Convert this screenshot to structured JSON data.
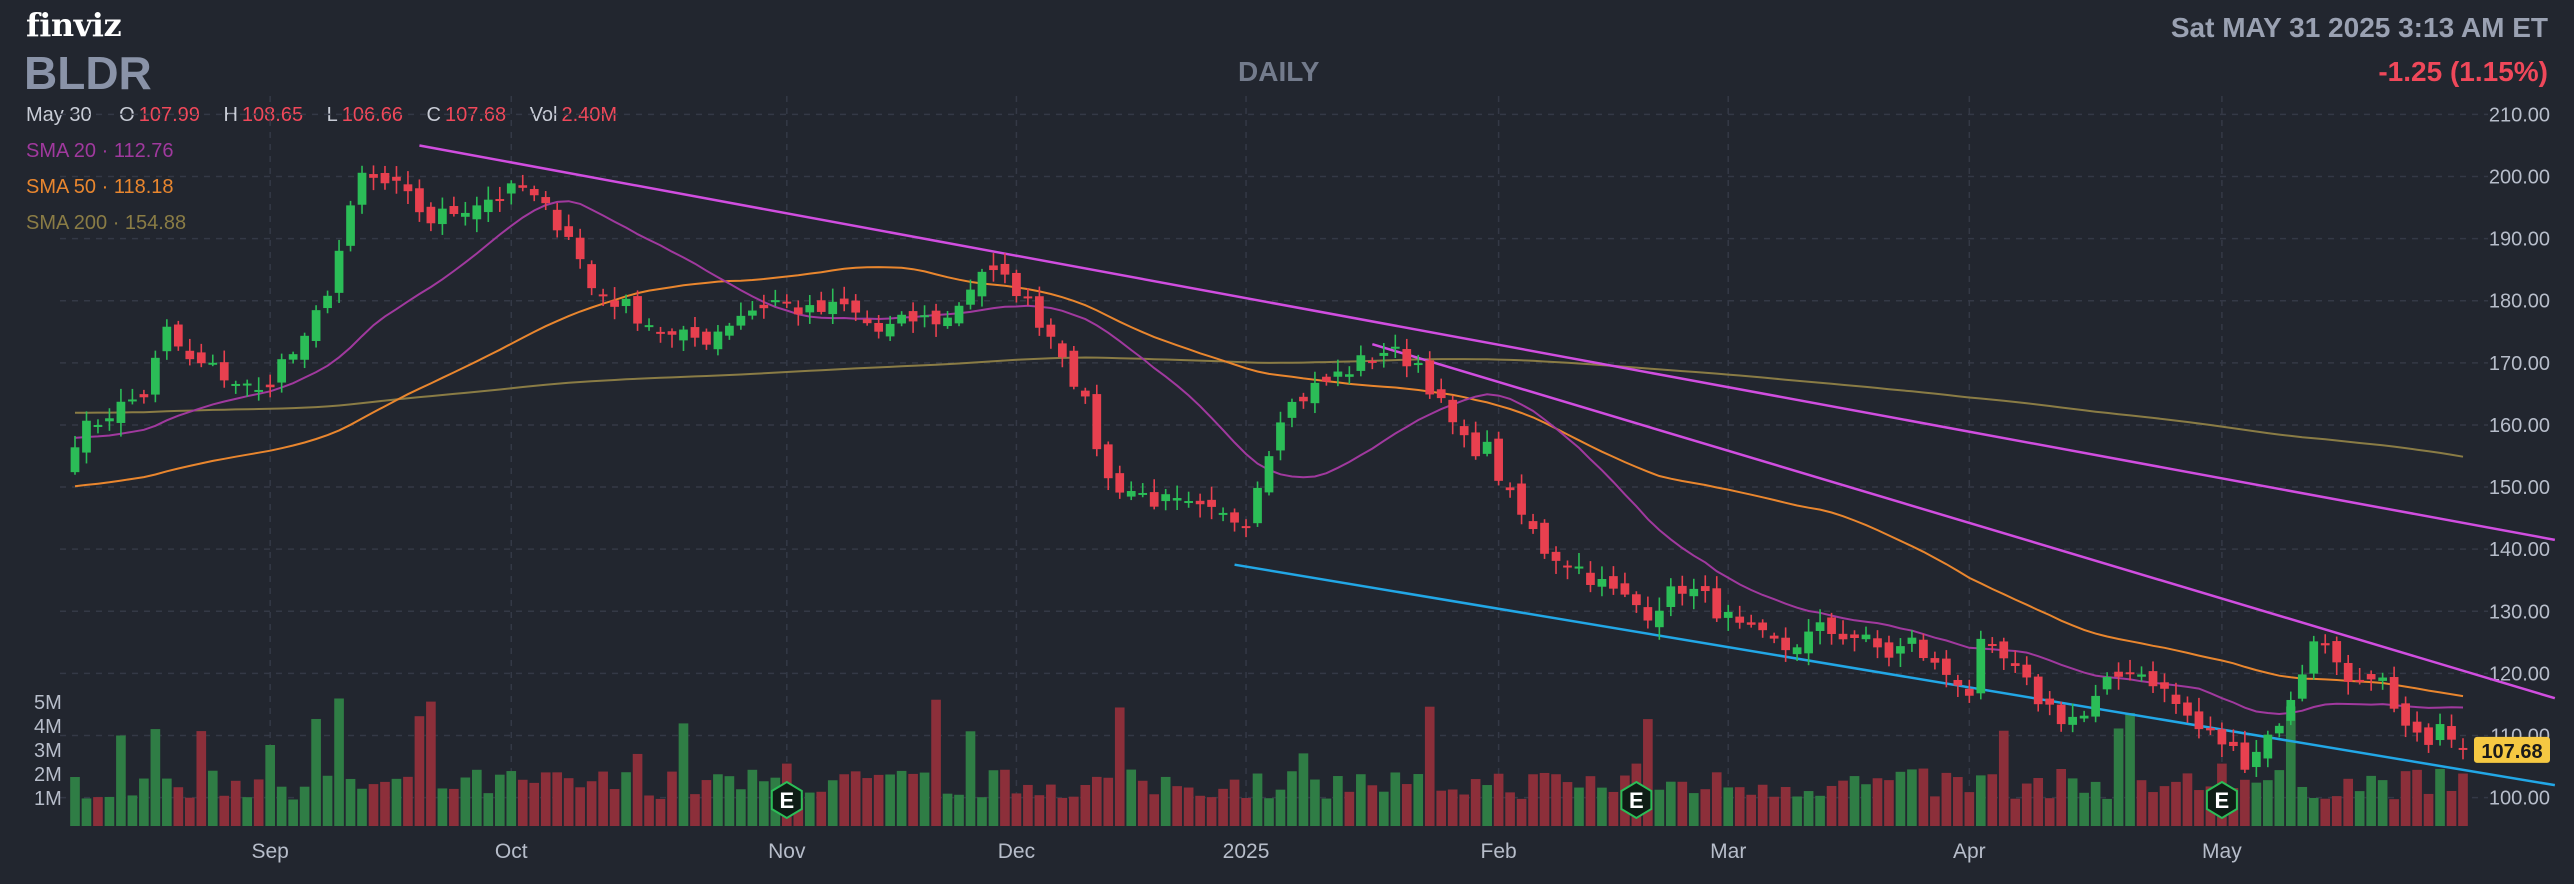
{
  "header": {
    "logo": "finviz",
    "ticker": "BLDR",
    "period": "DAILY",
    "datetime": "Sat MAY 31 2025 3:13 AM ET",
    "change": "-1.25 (1.15%)"
  },
  "ohlc": {
    "date": "May 30",
    "open_label": "O",
    "open": "107.99",
    "high_label": "H",
    "high": "108.65",
    "low_label": "L",
    "low": "106.66",
    "close_label": "C",
    "close": "107.68",
    "vol_label": "Vol",
    "vol": "2.40M"
  },
  "legend": {
    "sma20": "SMA 20 · 112.76",
    "sma50": "SMA 50 · 118.18",
    "sma200": "SMA 200 · 154.88"
  },
  "colors": {
    "background": "#22262f",
    "up": "#2bbd57",
    "down": "#e8404f",
    "sma20": "#a0399e",
    "sma50": "#e9862e",
    "sma200": "#8a7c45",
    "trendline_upper": "#d14ee0",
    "trendline_lower": "#22a7e6",
    "price_badge": "#f5c842"
  },
  "chart_data": {
    "type": "candlestick",
    "y_axis_ticks": [
      "210.00",
      "200.00",
      "190.00",
      "180.00",
      "170.00",
      "160.00",
      "150.00",
      "140.00",
      "130.00",
      "120.00",
      "110.00",
      "100.00"
    ],
    "ylim": [
      98,
      212
    ],
    "x_axis_labels": [
      "Sep",
      "Oct",
      "Nov",
      "Dec",
      "2025",
      "Feb",
      "Mar",
      "Apr",
      "May"
    ],
    "x_axis_index": [
      17,
      38,
      62,
      82,
      102,
      124,
      144,
      165,
      187
    ],
    "volume_axis_ticks": [
      "5M",
      "4M",
      "3M",
      "2M",
      "1M"
    ],
    "current_price_label": "107.68",
    "earnings_marker": "E",
    "earnings_index": [
      62,
      136,
      187
    ],
    "anchors": [
      [
        0,
        158
      ],
      [
        3,
        162
      ],
      [
        6,
        165
      ],
      [
        8,
        175
      ],
      [
        10,
        170
      ],
      [
        12,
        169
      ],
      [
        14,
        167
      ],
      [
        16,
        165
      ],
      [
        18,
        170
      ],
      [
        20,
        173
      ],
      [
        22,
        182
      ],
      [
        25,
        200
      ],
      [
        28,
        198
      ],
      [
        31,
        193
      ],
      [
        35,
        196
      ],
      [
        39,
        198
      ],
      [
        43,
        191
      ],
      [
        45,
        182
      ],
      [
        48,
        179
      ],
      [
        52,
        174
      ],
      [
        55,
        174
      ],
      [
        58,
        178
      ],
      [
        61,
        180
      ],
      [
        64,
        178
      ],
      [
        67,
        179
      ],
      [
        70,
        175
      ],
      [
        73,
        177
      ],
      [
        76,
        177
      ],
      [
        79,
        185
      ],
      [
        82,
        182
      ],
      [
        84,
        177
      ],
      [
        86,
        172
      ],
      [
        88,
        163
      ],
      [
        90,
        151
      ],
      [
        94,
        148
      ],
      [
        98,
        146
      ],
      [
        100,
        145
      ],
      [
        102,
        145
      ],
      [
        105,
        162
      ],
      [
        108,
        166
      ],
      [
        111,
        169
      ],
      [
        114,
        172
      ],
      [
        117,
        170
      ],
      [
        119,
        163
      ],
      [
        121,
        157
      ],
      [
        123,
        156
      ],
      [
        125,
        148
      ],
      [
        128,
        140
      ],
      [
        131,
        137
      ],
      [
        134,
        133
      ],
      [
        137,
        130
      ],
      [
        140,
        134
      ],
      [
        142,
        132
      ],
      [
        145,
        127
      ],
      [
        149,
        124
      ],
      [
        152,
        127
      ],
      [
        155,
        126
      ],
      [
        158,
        123
      ],
      [
        160,
        125
      ],
      [
        162,
        121
      ],
      [
        164,
        119
      ],
      [
        165,
        117
      ],
      [
        166,
        124
      ],
      [
        168,
        122
      ],
      [
        171,
        116
      ],
      [
        173,
        113
      ],
      [
        175,
        113
      ],
      [
        177,
        118
      ],
      [
        179,
        121
      ],
      [
        181,
        119
      ],
      [
        183,
        115
      ],
      [
        185,
        111
      ],
      [
        187,
        109
      ],
      [
        189,
        106
      ],
      [
        191,
        110
      ],
      [
        193,
        115
      ],
      [
        195,
        126
      ],
      [
        197,
        122
      ],
      [
        199,
        118
      ],
      [
        201,
        118
      ],
      [
        202,
        113
      ],
      [
        204,
        109
      ],
      [
        206,
        111
      ],
      [
        207,
        109
      ],
      [
        208,
        107.68
      ]
    ],
    "close_last": 107.68,
    "sma_last": {
      "sma20": 112.76,
      "sma50": 118.18,
      "sma200": 154.88
    },
    "trendlines": [
      {
        "name": "",
        "from": [
          30,
          205
        ],
        "to": [
          216,
          141.5
        ]
      },
      {
        "name": "",
        "from": [
          113,
          173
        ],
        "to": [
          216,
          116
        ]
      },
      {
        "name": "",
        "from": [
          101,
          137.5
        ],
        "to": [
          216,
          102
        ]
      }
    ]
  }
}
